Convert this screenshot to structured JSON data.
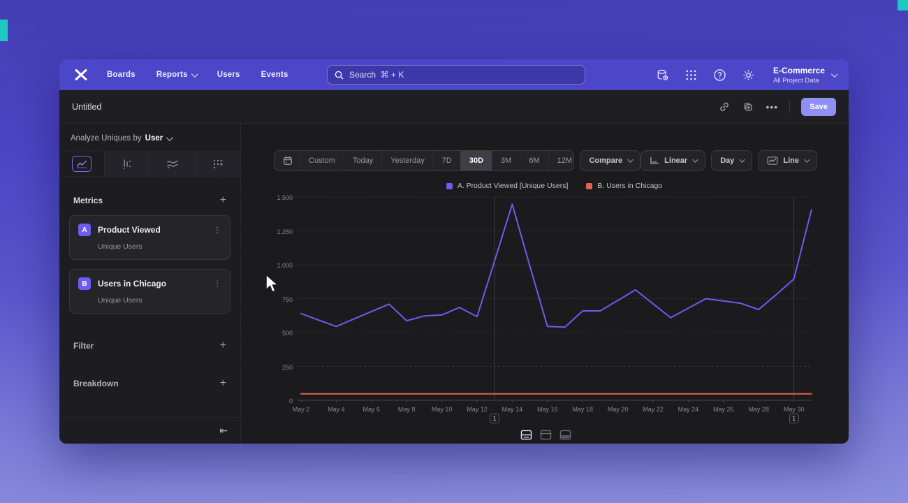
{
  "topbar": {
    "nav": {
      "boards": "Boards",
      "reports": "Reports",
      "users": "Users",
      "events": "Events"
    },
    "search": {
      "placeholder": "Search  ⌘ + K"
    },
    "project": {
      "name": "E-Commerce",
      "scope": "All Project Data"
    }
  },
  "titlebar": {
    "title": "Untitled",
    "save_label": "Save"
  },
  "sidebar": {
    "analyze": {
      "prefix": "Analyze Uniques by",
      "value": "User"
    },
    "metrics_heading": "Metrics",
    "metrics": [
      {
        "badge": "A",
        "label": "Product Viewed",
        "sublabel": "Unique Users"
      },
      {
        "badge": "B",
        "label": "Users in Chicago",
        "sublabel": "Unique Users"
      }
    ],
    "filter_heading": "Filter",
    "breakdown_heading": "Breakdown",
    "collapse_glyph": "⇤"
  },
  "toolbar": {
    "ranges": [
      "Custom",
      "Today",
      "Yesterday",
      "7D",
      "30D",
      "3M",
      "6M",
      "12M"
    ],
    "selected_range": "30D",
    "compare_label": "Compare",
    "scale_label": "Linear",
    "granularity_label": "Day",
    "chart_type_label": "Line"
  },
  "chart_data": {
    "type": "line",
    "x": [
      "May 2",
      "May 3",
      "May 4",
      "May 5",
      "May 6",
      "May 7",
      "May 8",
      "May 9",
      "May 10",
      "May 11",
      "May 12",
      "May 13",
      "May 14",
      "May 15",
      "May 16",
      "May 17",
      "May 18",
      "May 19",
      "May 20",
      "May 21",
      "May 22",
      "May 23",
      "May 24",
      "May 25",
      "May 26",
      "May 27",
      "May 28",
      "May 29",
      "May 30",
      "May 31"
    ],
    "x_tick_labels": [
      "May 2",
      "May 4",
      "May 6",
      "May 8",
      "May 10",
      "May 12",
      "May 14",
      "May 16",
      "May 18",
      "May 20",
      "May 22",
      "May 24",
      "May 26",
      "May 28",
      "May 30"
    ],
    "y_ticks": [
      0,
      250,
      500,
      750,
      1000,
      1250,
      1500
    ],
    "y_tick_labels": [
      "0",
      "250",
      "500",
      "750",
      "1,000",
      "1,250",
      "1,500"
    ],
    "ylim": [
      0,
      1500
    ],
    "grid": "horizontal-dashed",
    "legend_position": "top-center",
    "series": [
      {
        "name": "A. Product Viewed [Unique Users]",
        "color": "#6e5bf0",
        "values": [
          640,
          592,
          545,
          600,
          655,
          710,
          587,
          622,
          630,
          685,
          617,
          1030,
          1447,
          990,
          545,
          540,
          660,
          660,
          737,
          815,
          712,
          610,
          680,
          750,
          733,
          715,
          670,
          780,
          895,
          1405
        ]
      },
      {
        "name": "B. Users in Chicago",
        "color": "#e2614f",
        "values": [
          48,
          48,
          48,
          48,
          48,
          48,
          48,
          48,
          48,
          48,
          48,
          48,
          48,
          48,
          48,
          48,
          48,
          48,
          48,
          48,
          48,
          48,
          48,
          48,
          48,
          48,
          48,
          48,
          48,
          48
        ]
      }
    ],
    "annotations": [
      {
        "label": "1",
        "x_index": 11
      },
      {
        "label": "1",
        "x_index": 28
      }
    ]
  }
}
